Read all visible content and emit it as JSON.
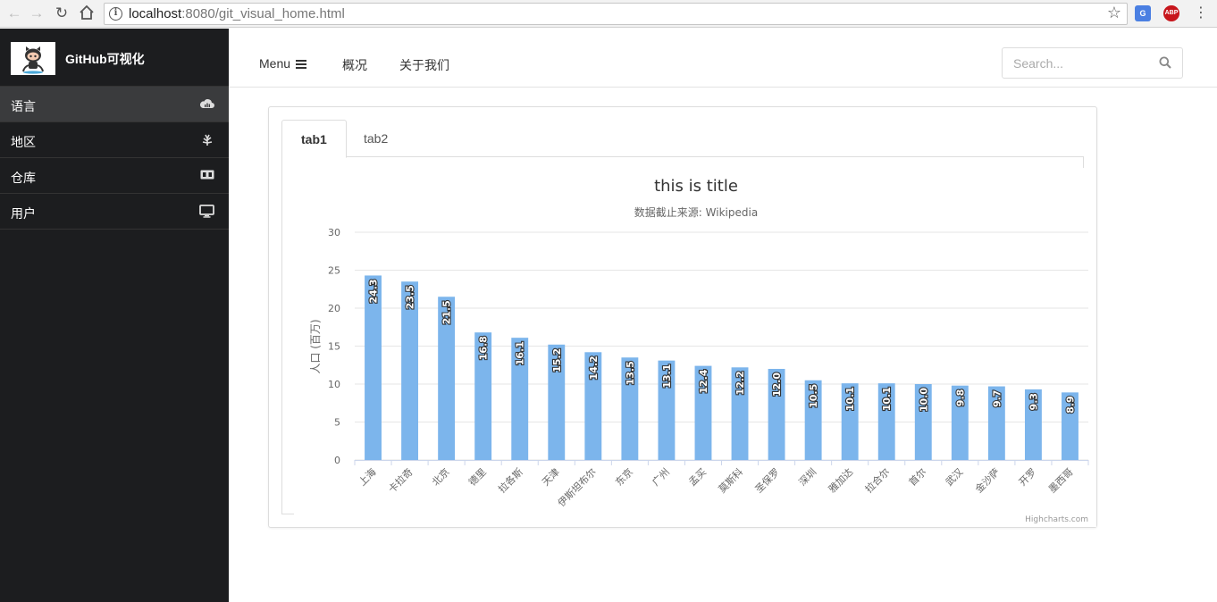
{
  "browser": {
    "url_host": "localhost",
    "url_rest": ":8080/git_visual_home.html"
  },
  "sidebar": {
    "brand": "GitHub可视化",
    "items": [
      {
        "label": "语言",
        "icon": "cloud-chart-icon",
        "active": true
      },
      {
        "label": "地区",
        "icon": "leaf-icon",
        "active": false
      },
      {
        "label": "仓库",
        "icon": "box-icon",
        "active": false
      },
      {
        "label": "用户",
        "icon": "monitor-icon",
        "active": false
      }
    ]
  },
  "topnav": {
    "menu_label": "Menu",
    "links": [
      "概况",
      "关于我们"
    ],
    "search_placeholder": "Search..."
  },
  "tabs": [
    "tab1",
    "tab2"
  ],
  "chart_data": {
    "type": "bar",
    "title": "this is title",
    "subtitle": "数据截止来源: Wikipedia",
    "ylabel": "人口 (百万)",
    "ylim": [
      0,
      30
    ],
    "yticks": [
      0,
      5,
      10,
      15,
      20,
      25,
      30
    ],
    "grid": true,
    "color": "#7cb5ec",
    "categories": [
      "上海",
      "卡拉奇",
      "北京",
      "德里",
      "拉各斯",
      "天津",
      "伊斯坦布尔",
      "东京",
      "广州",
      "孟买",
      "莫斯科",
      "圣保罗",
      "深圳",
      "雅加达",
      "拉合尔",
      "首尔",
      "武汉",
      "金沙萨",
      "开罗",
      "墨西哥"
    ],
    "values": [
      24.3,
      23.5,
      21.5,
      16.8,
      16.1,
      15.2,
      14.2,
      13.5,
      13.1,
      12.4,
      12.2,
      12.0,
      10.5,
      10.1,
      10.1,
      10.0,
      9.8,
      9.7,
      9.3,
      8.9
    ],
    "data_labels": [
      "24.3",
      "23.5",
      "21.5",
      "16.8",
      "16.1",
      "15.2",
      "14.2",
      "13.5",
      "13.1",
      "12.4",
      "12.2",
      "12.0",
      "10.5",
      "10.1",
      "10.1",
      "10.0",
      "9.8",
      "9.7",
      "9.3",
      "8.9"
    ],
    "credits": "Highcharts.com"
  }
}
